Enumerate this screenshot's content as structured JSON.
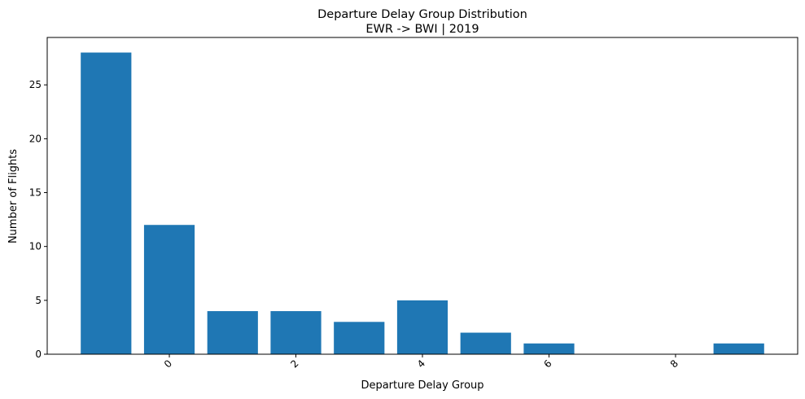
{
  "chart_data": {
    "type": "bar",
    "title": "Departure Delay Group Distribution",
    "subtitle": "EWR -> BWI | 2019",
    "xlabel": "Departure Delay Group",
    "ylabel": "Number of Flights",
    "x": [
      -1,
      0,
      1,
      2,
      3,
      4,
      5,
      6,
      9
    ],
    "values": [
      28,
      12,
      4,
      4,
      3,
      5,
      2,
      1,
      1
    ],
    "bar_width": 0.8,
    "xlim": [
      -1.93,
      9.93
    ],
    "ylim": [
      0,
      29.4
    ],
    "xticks": [
      0,
      2,
      4,
      6,
      8
    ],
    "yticks": [
      0,
      5,
      10,
      15,
      20,
      25
    ],
    "xtick_rotation": 45,
    "grid": false,
    "bar_color": "#1f77b4"
  }
}
